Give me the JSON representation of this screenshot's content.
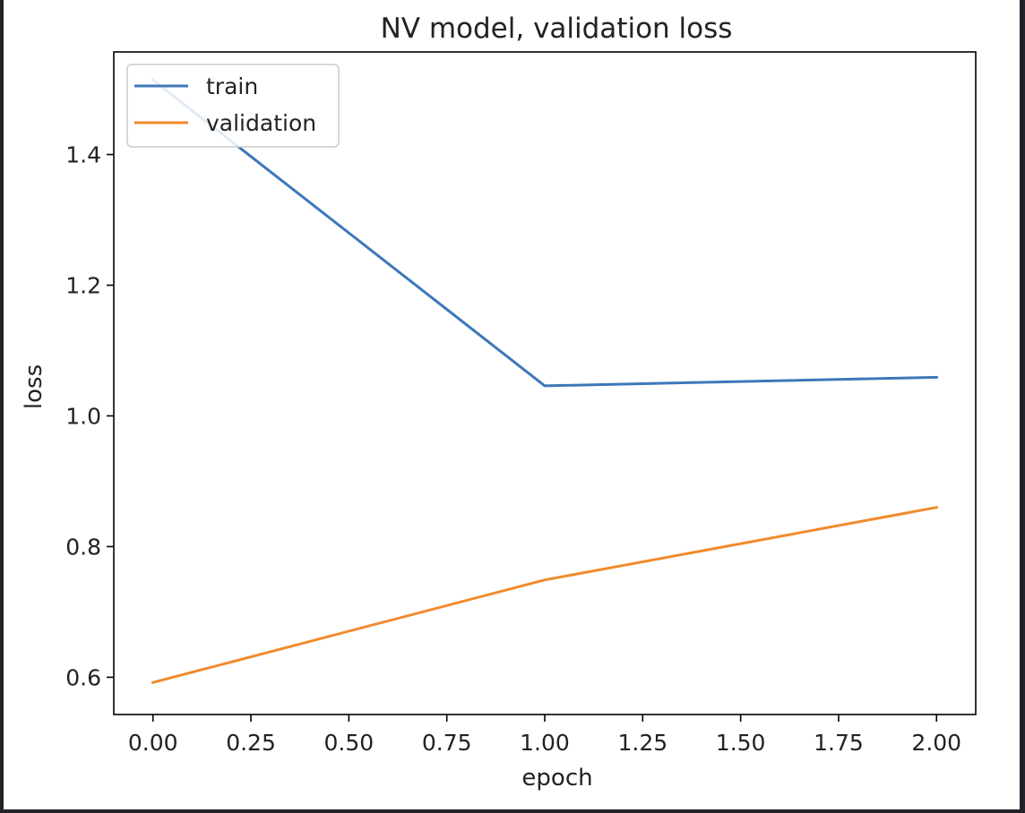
{
  "chart_data": {
    "type": "line",
    "title": "NV model, validation loss",
    "xlabel": "epoch",
    "ylabel": "loss",
    "x": [
      0,
      1,
      2
    ],
    "xlim": [
      -0.1,
      2.1
    ],
    "ylim": [
      0.543,
      1.557
    ],
    "xticks": [
      0.0,
      0.25,
      0.5,
      0.75,
      1.0,
      1.25,
      1.5,
      1.75,
      2.0
    ],
    "xtick_labels": [
      "0.00",
      "0.25",
      "0.50",
      "0.75",
      "1.00",
      "1.25",
      "1.50",
      "1.75",
      "2.00"
    ],
    "yticks": [
      0.6,
      0.8,
      1.0,
      1.2,
      1.4
    ],
    "ytick_labels": [
      "0.6",
      "0.8",
      "1.0",
      "1.2",
      "1.4"
    ],
    "series": [
      {
        "name": "train",
        "values": [
          1.514,
          1.046,
          1.059
        ],
        "color": "#3d78b9"
      },
      {
        "name": "validation",
        "values": [
          0.592,
          0.749,
          0.86
        ],
        "color": "#f28a2c"
      }
    ],
    "grid": false,
    "legend_position": "top-left"
  }
}
